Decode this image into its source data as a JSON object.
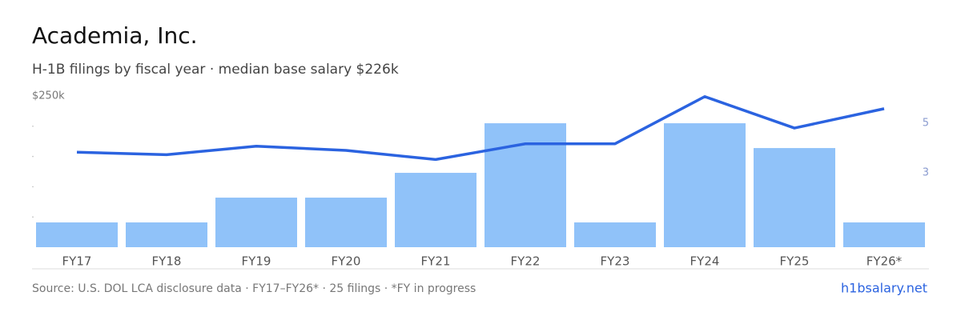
{
  "chart_data": {
    "type": "bar-line",
    "title": "Academia, Inc.",
    "subtitle": "H-1B filings by fiscal year · median base salary $226k",
    "source": "Source: U.S. DOL LCA disclosure data · FY17–FY26* · 25 filings · *FY in progress",
    "brand": "h1bsalary.net",
    "categories": [
      "FY17",
      "FY18",
      "FY19",
      "FY20",
      "FY21",
      "FY22",
      "FY23",
      "FY24",
      "FY25",
      "FY26*"
    ],
    "series": [
      {
        "name": "Filings",
        "type": "bar",
        "axis": "y2",
        "color": "#90c2f9",
        "values": [
          1,
          1,
          2,
          2,
          3,
          5,
          1,
          5,
          4,
          1
        ]
      },
      {
        "name": "Median base salary",
        "type": "line",
        "color": "#2b63e0",
        "values": [
          157000,
          153000,
          167000,
          160000,
          145000,
          171000,
          171000,
          249000,
          197000,
          229000
        ]
      }
    ],
    "ylim": [
      0,
      250000
    ],
    "yticks": [
      {
        "value": 250000,
        "label": "$250k"
      }
    ],
    "minor_yticks": [
      50000,
      100000,
      150000,
      200000
    ],
    "y2lim": [
      0,
      6.1
    ],
    "y2ticks": [
      3,
      5
    ]
  }
}
